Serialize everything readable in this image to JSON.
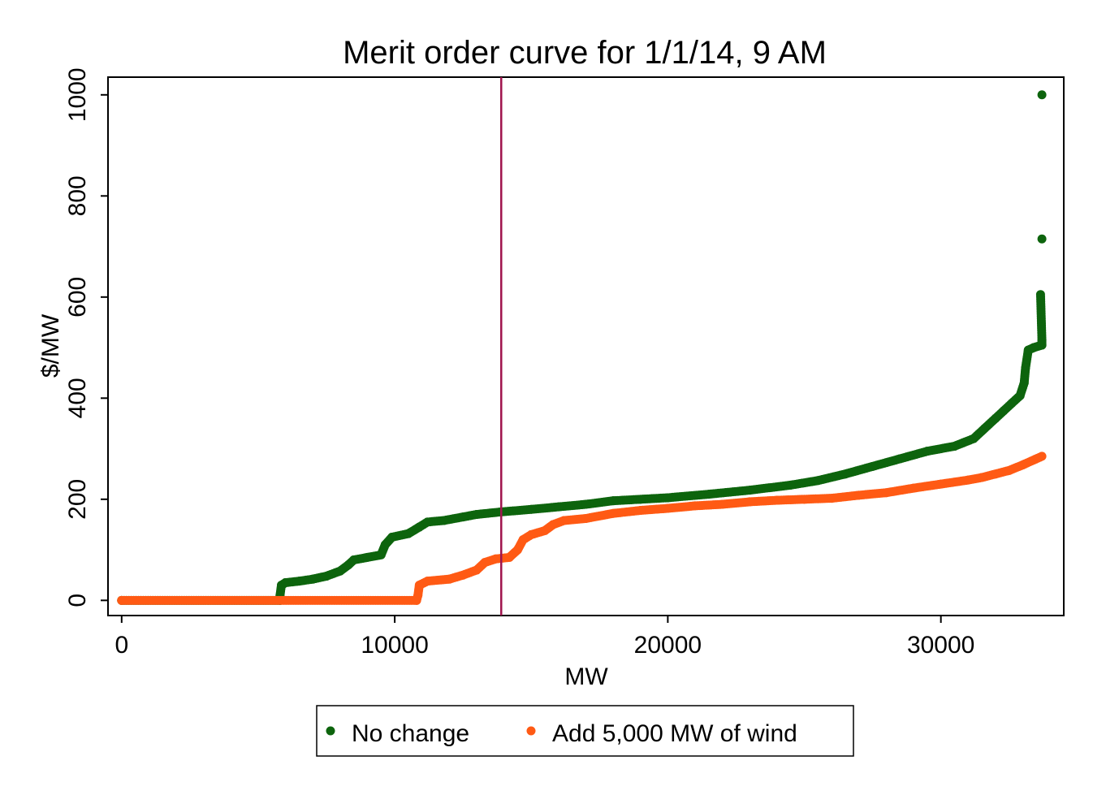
{
  "chart_data": {
    "type": "scatter",
    "title": "Merit order curve for 1/1/14, 9 AM",
    "xlabel": "MW",
    "ylabel": "$/MW",
    "xlim": [
      -500,
      34500
    ],
    "ylim": [
      -30,
      1035
    ],
    "x_ticks": [
      0,
      10000,
      20000,
      30000
    ],
    "y_ticks": [
      0,
      200,
      400,
      600,
      800,
      1000
    ],
    "x_tick_labels": [
      "0",
      "10000",
      "20000",
      "30000"
    ],
    "y_tick_labels": [
      "0",
      "200",
      "400",
      "600",
      "800",
      "1000"
    ],
    "grid": false,
    "legend_position": "bottom",
    "reference_line": {
      "axis": "x",
      "value": 13900,
      "color": "#a0154e"
    },
    "series": [
      {
        "name": "No change",
        "color": "#0d640d",
        "points": [
          [
            0,
            0
          ],
          [
            5800,
            0
          ],
          [
            5800,
            10
          ],
          [
            5850,
            30
          ],
          [
            6000,
            35
          ],
          [
            6500,
            38
          ],
          [
            7000,
            42
          ],
          [
            7500,
            48
          ],
          [
            8000,
            58
          ],
          [
            8300,
            70
          ],
          [
            8500,
            80
          ],
          [
            9000,
            85
          ],
          [
            9500,
            90
          ],
          [
            9650,
            110
          ],
          [
            9900,
            125
          ],
          [
            10500,
            132
          ],
          [
            10900,
            145
          ],
          [
            11200,
            155
          ],
          [
            11800,
            158
          ],
          [
            12500,
            165
          ],
          [
            13000,
            170
          ],
          [
            13900,
            175
          ],
          [
            15000,
            180
          ],
          [
            16000,
            185
          ],
          [
            17000,
            190
          ],
          [
            18000,
            197
          ],
          [
            19000,
            200
          ],
          [
            20000,
            203
          ],
          [
            21500,
            210
          ],
          [
            23000,
            218
          ],
          [
            24500,
            228
          ],
          [
            25500,
            237
          ],
          [
            26500,
            250
          ],
          [
            27500,
            265
          ],
          [
            28500,
            280
          ],
          [
            29500,
            295
          ],
          [
            30500,
            305
          ],
          [
            31200,
            320
          ],
          [
            31600,
            340
          ],
          [
            32000,
            360
          ],
          [
            32300,
            375
          ],
          [
            32600,
            390
          ],
          [
            32900,
            405
          ],
          [
            33050,
            430
          ],
          [
            33100,
            460
          ],
          [
            33200,
            495
          ],
          [
            33400,
            500
          ],
          [
            33700,
            505
          ],
          [
            33700,
            515
          ],
          [
            33650,
            605
          ],
          [
            33700,
            715
          ],
          [
            33700,
            1000
          ]
        ]
      },
      {
        "name": "Add 5,000 MW of wind",
        "color": "#ff5a14",
        "points": [
          [
            0,
            0
          ],
          [
            10800,
            0
          ],
          [
            10850,
            10
          ],
          [
            10900,
            30
          ],
          [
            11200,
            38
          ],
          [
            12000,
            42
          ],
          [
            12500,
            50
          ],
          [
            13000,
            60
          ],
          [
            13300,
            75
          ],
          [
            13700,
            82
          ],
          [
            14200,
            85
          ],
          [
            14500,
            100
          ],
          [
            14700,
            120
          ],
          [
            15000,
            130
          ],
          [
            15500,
            138
          ],
          [
            15800,
            150
          ],
          [
            16200,
            158
          ],
          [
            17000,
            162
          ],
          [
            18000,
            172
          ],
          [
            19000,
            178
          ],
          [
            20000,
            182
          ],
          [
            21000,
            187
          ],
          [
            22000,
            190
          ],
          [
            23000,
            195
          ],
          [
            24000,
            198
          ],
          [
            25000,
            200
          ],
          [
            26000,
            202
          ],
          [
            27000,
            208
          ],
          [
            28000,
            213
          ],
          [
            29000,
            222
          ],
          [
            30000,
            230
          ],
          [
            31000,
            238
          ],
          [
            31500,
            243
          ],
          [
            32000,
            250
          ],
          [
            32500,
            257
          ],
          [
            33000,
            268
          ],
          [
            33700,
            285
          ]
        ]
      }
    ]
  }
}
